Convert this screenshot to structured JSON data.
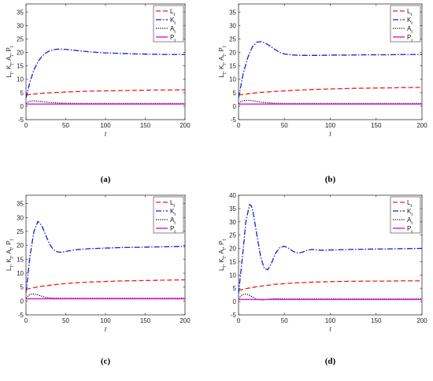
{
  "colors": {
    "L": "#e8201c",
    "K": "#1320d8",
    "A": "#000000",
    "P": "#e010e0"
  },
  "chart_data": [
    {
      "type": "line",
      "caption": "(a)",
      "xlabel": "t",
      "ylabel": "L_t, K_t, A_t, P_t",
      "xlim": [
        0,
        200
      ],
      "ylim": [
        -5,
        38
      ],
      "xticks": [
        0,
        50,
        100,
        150,
        200
      ],
      "yticks": [
        -5,
        0,
        5,
        10,
        15,
        20,
        25,
        30,
        35
      ],
      "legend": "top-right",
      "series": [
        {
          "name": "L",
          "sub": "t",
          "style": "dash",
          "x": [
            0,
            10,
            20,
            40,
            60,
            80,
            100,
            120,
            140,
            160,
            180,
            200
          ],
          "y": [
            4.2,
            4.5,
            4.8,
            5.1,
            5.4,
            5.6,
            5.7,
            5.8,
            5.9,
            6.0,
            6.0,
            6.1
          ]
        },
        {
          "name": "K",
          "sub": "t",
          "style": "dashdot",
          "x": [
            0,
            5,
            10,
            15,
            20,
            25,
            30,
            35,
            40,
            45,
            50,
            60,
            70,
            80,
            90,
            100,
            120,
            140,
            160,
            180,
            200
          ],
          "y": [
            3,
            9,
            13.5,
            16.5,
            18.5,
            19.8,
            20.6,
            21.0,
            21.2,
            21.2,
            21.1,
            20.8,
            20.5,
            20.2,
            20.0,
            19.8,
            19.6,
            19.4,
            19.3,
            19.2,
            19.2
          ]
        },
        {
          "name": "A",
          "sub": "t",
          "style": "dot",
          "x": [
            0,
            3,
            6,
            10,
            15,
            20,
            30,
            40,
            50,
            60,
            80,
            100,
            150,
            200
          ],
          "y": [
            1.0,
            1.6,
            1.9,
            2.0,
            1.9,
            1.7,
            1.4,
            1.2,
            1.1,
            1.05,
            1.0,
            1.0,
            1.0,
            1.0
          ]
        },
        {
          "name": "P",
          "sub": "t",
          "style": "solid",
          "x": [
            0,
            200
          ],
          "y": [
            0.8,
            0.8
          ]
        }
      ]
    },
    {
      "type": "line",
      "caption": "(b)",
      "xlabel": "t",
      "ylabel": "L_t, K_t, A_t, P_t",
      "xlim": [
        0,
        200
      ],
      "ylim": [
        -5,
        38
      ],
      "xticks": [
        0,
        50,
        100,
        150,
        200
      ],
      "yticks": [
        -5,
        0,
        5,
        10,
        15,
        20,
        25,
        30,
        35
      ],
      "legend": "top-right",
      "series": [
        {
          "name": "L",
          "sub": "t",
          "style": "dash",
          "x": [
            0,
            10,
            20,
            40,
            60,
            80,
            100,
            120,
            140,
            160,
            180,
            200
          ],
          "y": [
            4.2,
            4.6,
            5.0,
            5.5,
            5.9,
            6.2,
            6.4,
            6.6,
            6.7,
            6.8,
            6.9,
            7.0
          ]
        },
        {
          "name": "K",
          "sub": "t",
          "style": "dashdot",
          "x": [
            0,
            5,
            10,
            15,
            20,
            25,
            30,
            35,
            40,
            45,
            50,
            60,
            70,
            80,
            90,
            100,
            120,
            140,
            160,
            180,
            200
          ],
          "y": [
            3,
            12,
            18,
            22,
            23.8,
            24.0,
            23.3,
            22.2,
            21.0,
            20.0,
            19.4,
            19.0,
            18.9,
            18.9,
            18.9,
            19.0,
            19.0,
            19.1,
            19.1,
            19.2,
            19.2
          ]
        },
        {
          "name": "A",
          "sub": "t",
          "style": "dot",
          "x": [
            0,
            3,
            6,
            10,
            15,
            20,
            25,
            30,
            40,
            50,
            60,
            80,
            100,
            150,
            200
          ],
          "y": [
            1.0,
            1.8,
            2.1,
            2.2,
            2.1,
            1.8,
            1.5,
            1.3,
            1.1,
            1.0,
            1.0,
            1.0,
            1.0,
            1.0,
            1.0
          ]
        },
        {
          "name": "P",
          "sub": "t",
          "style": "solid",
          "x": [
            0,
            200
          ],
          "y": [
            0.8,
            0.8
          ]
        }
      ]
    },
    {
      "type": "line",
      "caption": "(c)",
      "xlabel": "t",
      "ylabel": "L_t, K_t, A_t, P_t",
      "xlim": [
        0,
        200
      ],
      "ylim": [
        -5,
        38
      ],
      "xticks": [
        0,
        50,
        100,
        150,
        200
      ],
      "yticks": [
        -5,
        0,
        5,
        10,
        15,
        20,
        25,
        30,
        35
      ],
      "legend": "top-right",
      "series": [
        {
          "name": "L",
          "sub": "t",
          "style": "dash",
          "x": [
            0,
            10,
            20,
            40,
            60,
            80,
            100,
            120,
            140,
            160,
            180,
            200
          ],
          "y": [
            4.2,
            4.8,
            5.3,
            6.0,
            6.5,
            6.8,
            7.0,
            7.2,
            7.3,
            7.4,
            7.5,
            7.6
          ]
        },
        {
          "name": "K",
          "sub": "t",
          "style": "dashdot",
          "x": [
            0,
            5,
            10,
            15,
            20,
            25,
            30,
            35,
            40,
            45,
            50,
            60,
            70,
            80,
            100,
            120,
            140,
            160,
            180,
            200
          ],
          "y": [
            3,
            16,
            25,
            28.6,
            27.0,
            23.5,
            20.2,
            18.3,
            17.6,
            17.5,
            17.8,
            18.3,
            18.6,
            18.8,
            19.0,
            19.2,
            19.3,
            19.4,
            19.5,
            19.6
          ]
        },
        {
          "name": "A",
          "sub": "t",
          "style": "dot",
          "x": [
            0,
            3,
            6,
            10,
            15,
            20,
            25,
            30,
            40,
            50,
            60,
            100,
            150,
            200
          ],
          "y": [
            1.0,
            2.0,
            2.4,
            2.5,
            2.2,
            1.7,
            1.3,
            1.1,
            1.0,
            1.0,
            1.0,
            1.0,
            1.0,
            1.0
          ]
        },
        {
          "name": "P",
          "sub": "t",
          "style": "solid",
          "x": [
            0,
            200
          ],
          "y": [
            0.8,
            0.8
          ]
        }
      ]
    },
    {
      "type": "line",
      "caption": "(d)",
      "xlabel": "t",
      "ylabel": "L_t, K_t, A_t, P_t",
      "xlim": [
        0,
        200
      ],
      "ylim": [
        -5,
        40
      ],
      "xticks": [
        0,
        50,
        100,
        150,
        200
      ],
      "yticks": [
        -5,
        0,
        5,
        10,
        15,
        20,
        25,
        30,
        35,
        40
      ],
      "legend": "top-right",
      "series": [
        {
          "name": "L",
          "sub": "t",
          "style": "dash",
          "x": [
            0,
            10,
            20,
            40,
            60,
            80,
            100,
            120,
            140,
            160,
            180,
            200
          ],
          "y": [
            4.2,
            5.0,
            5.6,
            6.5,
            7.0,
            7.3,
            7.5,
            7.6,
            7.7,
            7.7,
            7.8,
            7.8
          ]
        },
        {
          "name": "K",
          "sub": "t",
          "style": "dashdot",
          "x": [
            0,
            4,
            8,
            12,
            14,
            16,
            20,
            24,
            28,
            32,
            36,
            40,
            45,
            50,
            55,
            60,
            65,
            70,
            75,
            80,
            85,
            90,
            100,
            120,
            140,
            160,
            180,
            200
          ],
          "y": [
            3,
            16,
            30,
            36.5,
            36.0,
            33.5,
            25,
            17,
            12.5,
            12.0,
            14.5,
            18.0,
            20.3,
            20.8,
            20.0,
            18.8,
            18.2,
            18.6,
            19.3,
            19.6,
            19.5,
            19.3,
            19.4,
            19.6,
            19.7,
            19.8,
            19.9,
            20.0
          ]
        },
        {
          "name": "A",
          "sub": "t",
          "style": "dot",
          "x": [
            0,
            3,
            6,
            10,
            14,
            18,
            22,
            26,
            30,
            35,
            40,
            50,
            60,
            100,
            150,
            200
          ],
          "y": [
            1.0,
            2.3,
            2.8,
            2.7,
            2.0,
            1.2,
            0.7,
            0.6,
            0.8,
            1.0,
            1.1,
            1.0,
            1.0,
            1.0,
            1.0,
            1.0
          ]
        },
        {
          "name": "P",
          "sub": "t",
          "style": "solid",
          "x": [
            0,
            200
          ],
          "y": [
            0.8,
            0.8
          ]
        }
      ]
    }
  ]
}
